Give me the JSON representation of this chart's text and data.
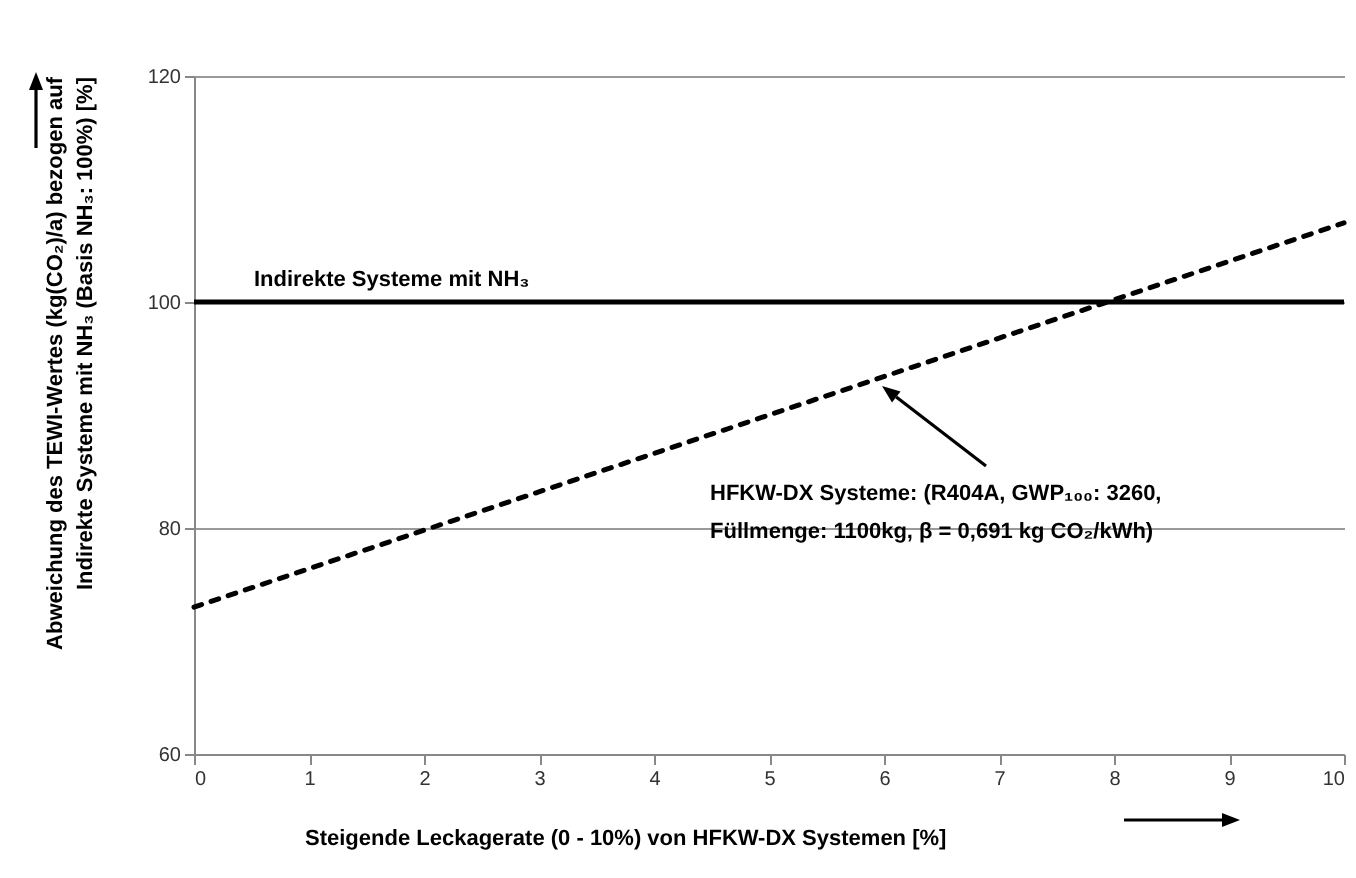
{
  "chart_data": {
    "type": "line",
    "xlabel": "Steigende Leckagerate (0 - 10%) von HFKW-DX Systemen [%]",
    "ylabel": "Abweichung des TEWI-Wertes (kg(CO₂)/a) bezogen auf Indirekte Systeme mit NH₃ (Basis NH₃: 100%) [%]",
    "x": [
      0,
      10
    ],
    "series": [
      {
        "color": "#000000",
        "values": [
          73,
          107
        ]
      }
    ],
    "line_style": "dashed",
    "marker": "none",
    "xlim": [
      0,
      10
    ],
    "xticks": [
      0,
      1,
      2,
      3,
      4,
      5,
      6,
      7,
      8,
      9,
      10
    ],
    "ylim": [
      60,
      120
    ],
    "yticks": [
      60,
      80,
      100,
      120
    ],
    "grid": "y",
    "ref_lines": [
      {
        "axis": "y",
        "value": 100,
        "label": "Indirekte Systeme mit NH₃",
        "color": "#000000",
        "line_style": "solid"
      }
    ],
    "annotations": [
      "HFKW-DX Systeme: (R404A, GWP₁₀₀: 3260, Füllmenge: 1100kg, β = 0,691 kg CO₂/kWh)"
    ]
  }
}
